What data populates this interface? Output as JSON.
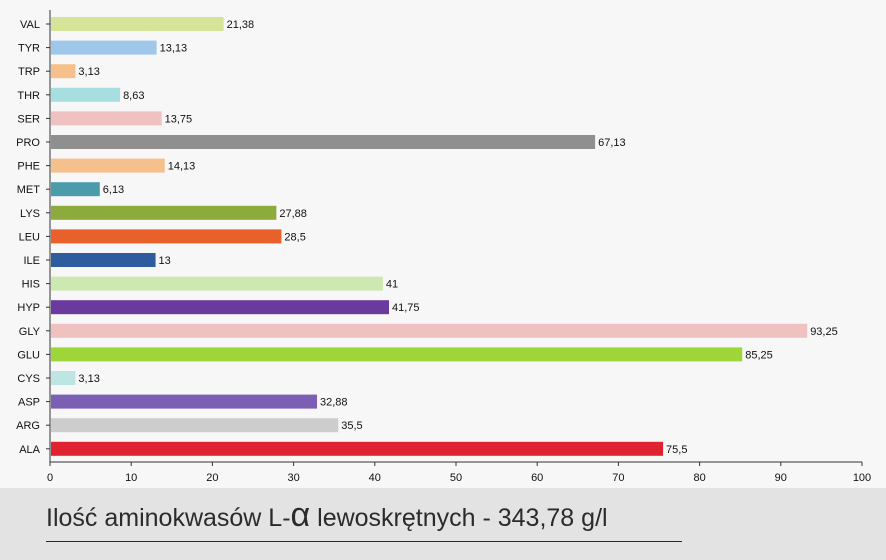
{
  "chart_data": {
    "type": "bar",
    "orientation": "horizontal",
    "categories": [
      "VAL",
      "TYR",
      "TRP",
      "THR",
      "SER",
      "PRO",
      "PHE",
      "MET",
      "LYS",
      "LEU",
      "ILE",
      "HIS",
      "HYP",
      "GLY",
      "GLU",
      "CYS",
      "ASP",
      "ARG",
      "ALA"
    ],
    "values": [
      21.38,
      13.13,
      3.13,
      8.63,
      13.75,
      67.13,
      14.13,
      6.13,
      27.88,
      28.5,
      13,
      41,
      41.75,
      93.25,
      85.25,
      3.13,
      32.88,
      35.5,
      75.5
    ],
    "value_labels": [
      "21,38",
      "13,13",
      "3,13",
      "8,63",
      "13,75",
      "67,13",
      "14,13",
      "6,13",
      "27,88",
      "28,5",
      "13",
      "41",
      "41,75",
      "93,25",
      "85,25",
      "3,13",
      "32,88",
      "35,5",
      "75,5"
    ],
    "colors": [
      "#d6e49a",
      "#9ec7e9",
      "#f5c08c",
      "#a7dedf",
      "#f0c1c1",
      "#8f8f8f",
      "#f5c08c",
      "#4a9caa",
      "#8daa3c",
      "#e8602a",
      "#2e5c9e",
      "#cde8b0",
      "#6b3a9e",
      "#f0c1c1",
      "#9ed63a",
      "#bfe4e4",
      "#7b5fb5",
      "#cdcdcd",
      "#e02330"
    ],
    "xlim": [
      0,
      100
    ],
    "xticks": [
      "0",
      "10",
      "20",
      "30",
      "40",
      "50",
      "60",
      "70",
      "80",
      "90",
      "100"
    ],
    "grid": false,
    "xlabel": "",
    "ylabel": ""
  },
  "caption": {
    "prefix": "Ilość aminokwasów L-",
    "alpha": "α",
    "suffix": " lewoskrętnych - 343,78 g/l"
  }
}
